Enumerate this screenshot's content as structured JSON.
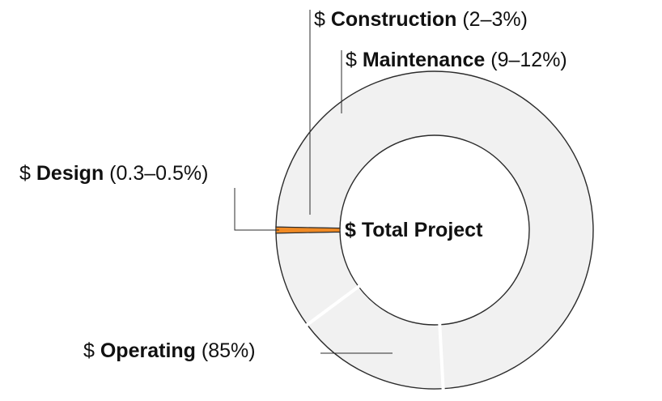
{
  "chart_data": {
    "type": "pie",
    "title": "",
    "center_label": "$ Total Project",
    "colors": {
      "slice_fill": "#f1f1f1",
      "slice_stroke": "#2b2b2b",
      "highlight": "#f08a24",
      "leader": "#2b2b2b"
    },
    "slices": [
      {
        "key": "design",
        "prefix": "$ ",
        "name": "Design",
        "range": "(0.3–0.5%)",
        "value": 0.4,
        "highlight": true
      },
      {
        "key": "operating",
        "prefix": "$ ",
        "name": "Operating",
        "range": "(85%)",
        "value": 85,
        "highlight": false
      },
      {
        "key": "maintenance",
        "prefix": "$ ",
        "name": "Maintenance",
        "range": "(9–12%)",
        "value": 10.5,
        "highlight": false
      },
      {
        "key": "construction",
        "prefix": "$ ",
        "name": "Construction",
        "range": "(2–3%)",
        "value": 2.5,
        "highlight": false
      }
    ]
  }
}
